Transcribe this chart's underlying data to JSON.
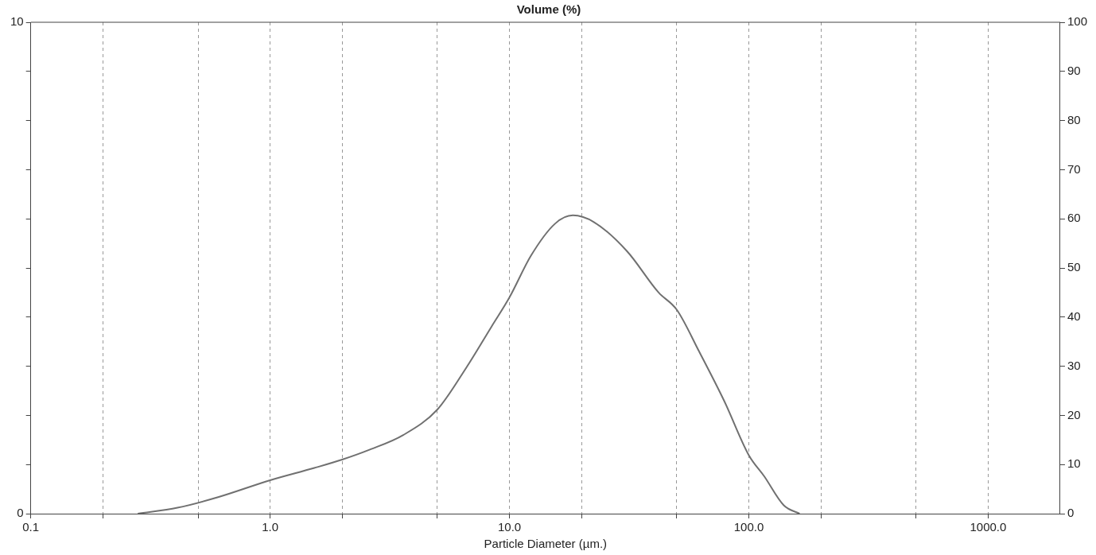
{
  "chart_data": {
    "type": "line",
    "title": "Volume (%)",
    "xlabel": "Particle Diameter (µm.)",
    "log": "x",
    "grid": "x",
    "legend": false,
    "marker": "none",
    "line_style": "solid",
    "xlim": [
      0.1,
      2000
    ],
    "xticks": [
      {
        "value": 0.1,
        "label": "0.1"
      },
      {
        "value": 0.2,
        "label": null
      },
      {
        "value": 0.5,
        "label": null
      },
      {
        "value": 1,
        "label": "1.0"
      },
      {
        "value": 2,
        "label": null
      },
      {
        "value": 5,
        "label": null
      },
      {
        "value": 10,
        "label": "10.0"
      },
      {
        "value": 20,
        "label": null
      },
      {
        "value": 50,
        "label": null
      },
      {
        "value": 100,
        "label": "100.0"
      },
      {
        "value": 200,
        "label": null
      },
      {
        "value": 500,
        "label": null
      },
      {
        "value": 1000,
        "label": "1000.0"
      }
    ],
    "ylim": [
      0,
      10
    ],
    "yticks": [
      0,
      {
        "value": 1,
        "label": null
      },
      {
        "value": 2,
        "label": null
      },
      {
        "value": 3,
        "label": null
      },
      {
        "value": 4,
        "label": null
      },
      {
        "value": 5,
        "label": null
      },
      {
        "value": 6,
        "label": null
      },
      {
        "value": 7,
        "label": null
      },
      {
        "value": 8,
        "label": null
      },
      {
        "value": 9,
        "label": null
      },
      10
    ],
    "y2lim": [
      0,
      100
    ],
    "y2ticks": [
      0,
      10,
      20,
      30,
      40,
      50,
      60,
      70,
      80,
      90,
      100
    ],
    "series": [
      {
        "color": "#707070",
        "x": [
          0.28,
          0.41,
          0.61,
          1.0,
          1.53,
          2.0,
          2.6,
          3.6,
          5.0,
          6.6,
          8.4,
          10,
          12.3,
          15.5,
          18.4,
          22.6,
          31,
          42,
          50,
          62,
          79,
          100,
          116,
          140,
          163
        ],
        "values": [
          0,
          0.12,
          0.34,
          0.68,
          0.93,
          1.1,
          1.3,
          1.6,
          2.12,
          2.97,
          3.8,
          4.4,
          5.25,
          5.9,
          6.07,
          5.93,
          5.34,
          4.5,
          4.15,
          3.3,
          2.29,
          1.19,
          0.76,
          0.17,
          0
        ]
      }
    ]
  }
}
